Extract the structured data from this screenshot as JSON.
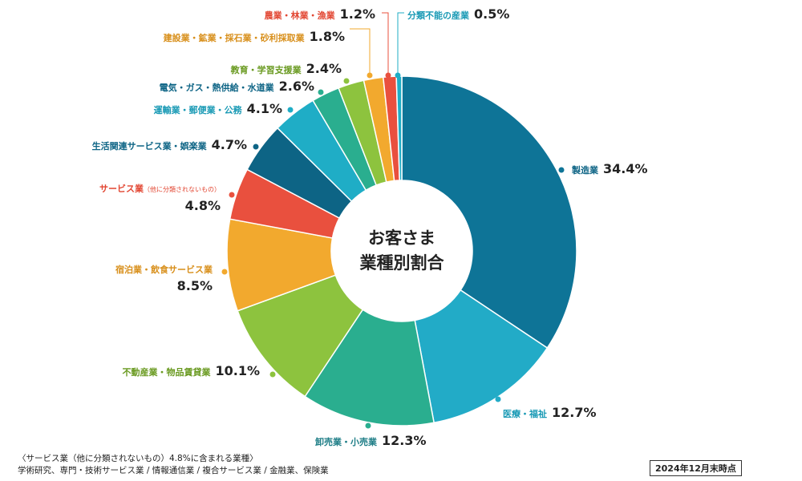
{
  "center_label": {
    "line1": "お客さま",
    "line2": "業種別割合"
  },
  "footnote": {
    "line1": "〈サービス業（他に分類されないもの）4.8%に含まれる業種〉",
    "line2": "学術研究、専門・技術サービス業 / 情報通信業 / 複合サービス業 / 金融業、保険業"
  },
  "as_of": "2024年12月末時点",
  "chart_data": {
    "type": "pie",
    "variant": "donut",
    "order": "clockwise from 12 o'clock",
    "categories": [
      "製造業",
      "医療・福祉",
      "卸売業・小売業",
      "不動産業・物品賃貸業",
      "宿泊業・飲食サービス業",
      "サービス業",
      "生活関連サービス業・娯楽業",
      "運輸業・郵便業・公務",
      "電気・ガス・熱供給・水道業",
      "教育・学習支援業",
      "建設業・鉱業・採石業・砂利採取業",
      "農業・林業・漁業",
      "分類不能の産業"
    ],
    "sub_notes": [
      "",
      "",
      "",
      "",
      "",
      "（他に分類されないもの）",
      "",
      "",
      "",
      "",
      "",
      "",
      ""
    ],
    "values": [
      34.4,
      12.7,
      12.3,
      10.1,
      8.5,
      4.8,
      4.7,
      4.1,
      2.6,
      2.4,
      1.8,
      1.2,
      0.5
    ],
    "value_labels": [
      "34.4%",
      "12.7%",
      "12.3%",
      "10.1%",
      "8.5%",
      "4.8%",
      "4.7%",
      "4.1%",
      "2.6%",
      "2.4%",
      "1.8%",
      "1.2%",
      "0.5%"
    ],
    "colors": [
      "#0e7497",
      "#22abc7",
      "#2aae8f",
      "#8dc33e",
      "#f2a92e",
      "#e9503e",
      "#0d6485",
      "#1fadc6",
      "#2aae8f",
      "#8dc33e",
      "#f2a92e",
      "#e9503e",
      "#1fadc6"
    ],
    "label_colors": [
      "#0d6485",
      "#1a9ab5",
      "#1d7d86",
      "#6a9a21",
      "#d88f1b",
      "#e24632",
      "#0d6485",
      "#1a9ab5",
      "#0d6485",
      "#6a9a21",
      "#d88f1b",
      "#e24632",
      "#1a9ab5"
    ]
  }
}
